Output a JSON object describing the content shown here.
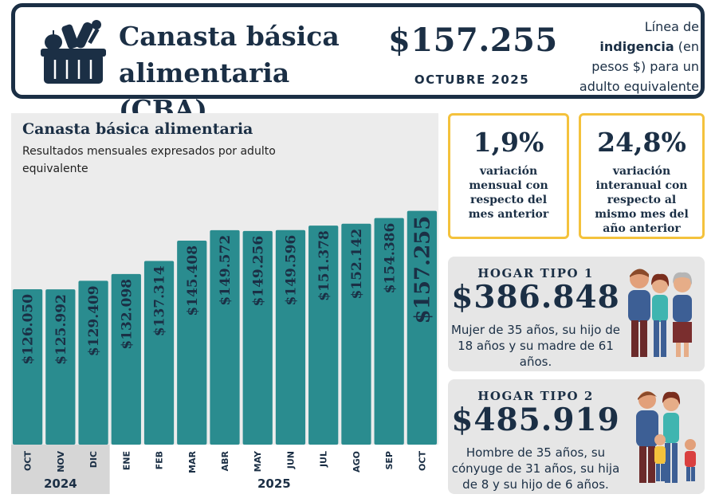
{
  "header": {
    "title_line1": "Canasta básica",
    "title_line2": "alimentaria (CBA)",
    "price": "$157.255",
    "month": "OCTUBRE 2025",
    "desc_line1": "Línea de",
    "desc_bold": "indigencia",
    "desc_paren": " (en",
    "desc_line3": "pesos $) para un",
    "desc_line4": "adulto equivalente"
  },
  "stats": [
    {
      "value": "1,9%",
      "desc": "variación mensual con respecto del mes anterior"
    },
    {
      "value": "24,8%",
      "desc": "variación interanual con respecto al mismo mes del año anterior"
    }
  ],
  "hogares": [
    {
      "tag": "HOGAR TIPO 1",
      "amount": "$386.848",
      "desc": "Mujer de 35 años, su hijo de 18 años y su madre de 61 años."
    },
    {
      "tag": "HOGAR TIPO 2",
      "amount": "$485.919",
      "desc": "Hombre de 35 años, su cónyuge de 31 años, su hija de 8 y su hijo de 6 años."
    }
  ],
  "chart_data": {
    "type": "bar",
    "title": "Canasta básica alimentaria",
    "subtitle": "Resultados mensuales expresados por adulto equivalente",
    "categories": [
      "OCT",
      "NOV",
      "DIC",
      "ENE",
      "FEB",
      "MAR",
      "ABR",
      "MAY",
      "JUN",
      "JUL",
      "AGO",
      "SEP",
      "OCT"
    ],
    "years": [
      {
        "label": "2024",
        "count": 3
      },
      {
        "label": "2025",
        "count": 10
      }
    ],
    "values": [
      126050,
      125992,
      129409,
      132098,
      137314,
      145408,
      149572,
      149256,
      149596,
      151378,
      152142,
      154386,
      157255
    ],
    "labels": [
      "$126.050",
      "$125.992",
      "$129.409",
      "$132.098",
      "$137.314",
      "$145.408",
      "$149.572",
      "$149.256",
      "$149.596",
      "$151.378",
      "$152.142",
      "$154.386",
      "$157.255"
    ],
    "highlight_last": true,
    "bar_color": "#2a8c8f",
    "ylim": [
      0,
      170000
    ]
  },
  "colors": {
    "navy": "#1b2f45",
    "teal": "#2a8c8f",
    "yellow": "#f4c23c",
    "panel": "#ececec"
  }
}
